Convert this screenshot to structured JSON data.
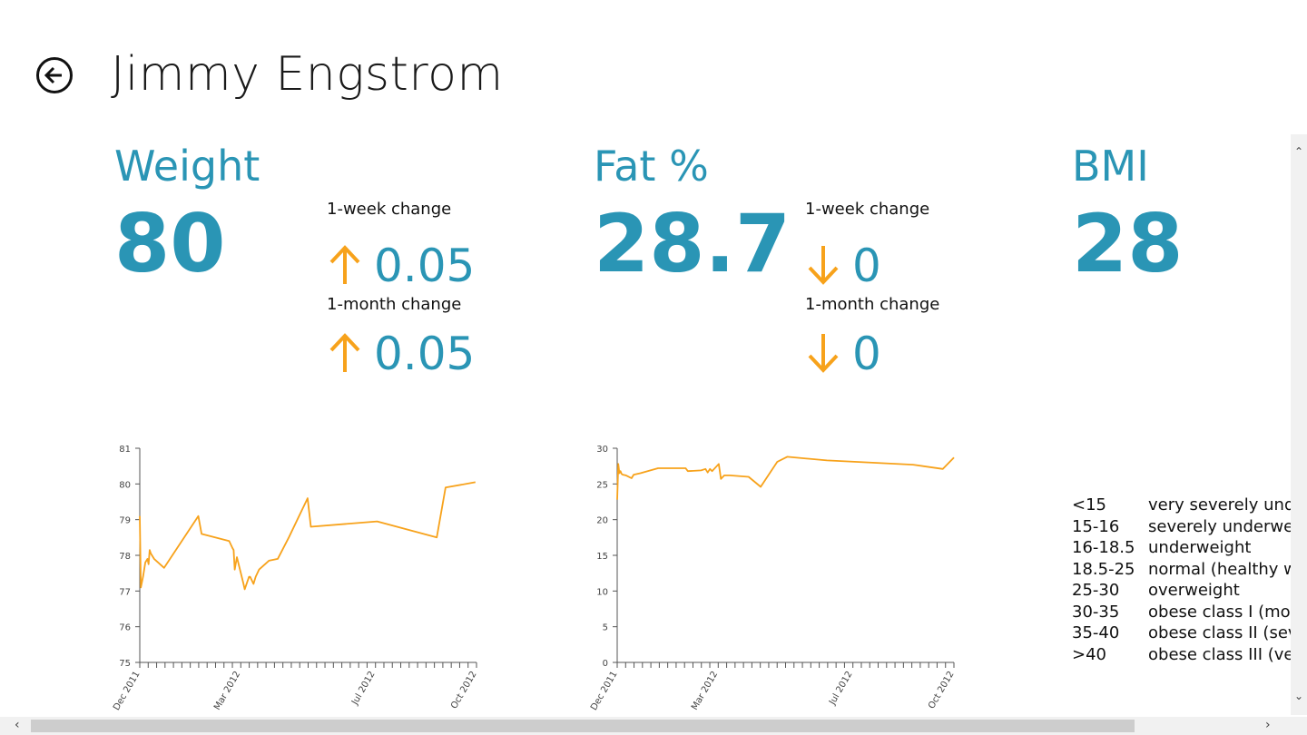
{
  "header": {
    "title": "Jimmy Engstrom"
  },
  "metrics": {
    "weight": {
      "title": "Weight",
      "value": "80",
      "week_label": "1-week change",
      "week_value": "0.05",
      "week_direction": "up",
      "month_label": "1-month change",
      "month_value": "0.05",
      "month_direction": "up"
    },
    "fat": {
      "title": "Fat %",
      "value": "28.7",
      "week_label": "1-week change",
      "week_value": "0",
      "week_direction": "down",
      "month_label": "1-month change",
      "month_value": "0",
      "month_direction": "down"
    },
    "bmi": {
      "title": "BMI",
      "value": "28"
    }
  },
  "colors": {
    "accent": "#2a95b5",
    "arrow": "#f7a21b",
    "line": "#f7a21b"
  },
  "bmi_scale": [
    {
      "range": "<15",
      "desc": "very  severely underweight"
    },
    {
      "range": "15-16",
      "desc": "severely underweight"
    },
    {
      "range": "16-18.5",
      "desc": "underweight"
    },
    {
      "range": "18.5-25",
      "desc": "normal (healthy weight)"
    },
    {
      "range": "25-30",
      "desc": "overweight"
    },
    {
      "range": "30-35",
      "desc": "obese class I (moderately obese)"
    },
    {
      "range": "35-40",
      "desc": "obese class II (severely obese)"
    },
    {
      "range": ">40",
      "desc": "obese class III (very severely obese)"
    }
  ],
  "chart_data": [
    {
      "type": "line",
      "title": "",
      "xlabel": "",
      "ylabel": "",
      "ylim": [
        75,
        81
      ],
      "yticks": [
        75,
        76,
        77,
        78,
        79,
        80,
        81
      ],
      "xlim": [
        "2011-12-01",
        "2012-10-01"
      ],
      "xtick_labels": [
        {
          "label": "Dec 2011",
          "date": "2011-12-01"
        },
        {
          "label": "Mar 2012",
          "date": "2012-03-01"
        },
        {
          "label": "Jul 2012",
          "date": "2012-07-01"
        },
        {
          "label": "Oct 2012",
          "date": "2012-10-01"
        }
      ],
      "grid": false,
      "series": [
        {
          "x": [
            "2011-12-01",
            "2011-12-02",
            "2011-12-04",
            "2011-12-06",
            "2011-12-07",
            "2011-12-08",
            "2011-12-09",
            "2011-12-10",
            "2011-12-11",
            "2011-12-14",
            "2011-12-23",
            "2012-01-23",
            "2012-01-26",
            "2012-02-20",
            "2012-02-23",
            "2012-02-24",
            "2012-02-25",
            "2012-02-27",
            "2012-03-04",
            "2012-03-05",
            "2012-03-09",
            "2012-03-10",
            "2012-03-13",
            "2012-03-15",
            "2012-03-18",
            "2012-03-27",
            "2012-04-04",
            "2012-04-14",
            "2012-05-01",
            "2012-05-04",
            "2012-07-03",
            "2012-08-26",
            "2012-09-03",
            "2012-09-30"
          ],
          "y": [
            79.1,
            77.1,
            77.4,
            77.8,
            77.85,
            77.9,
            77.75,
            78.15,
            78.05,
            77.9,
            77.65,
            79.1,
            78.6,
            78.4,
            78.2,
            78.15,
            77.6,
            77.95,
            77.2,
            77.05,
            77.4,
            77.4,
            77.2,
            77.4,
            77.6,
            77.85,
            77.9,
            78.5,
            79.6,
            78.8,
            78.95,
            78.5,
            79.9,
            80.05
          ]
        }
      ]
    },
    {
      "type": "line",
      "title": "",
      "xlabel": "",
      "ylabel": "",
      "ylim": [
        0,
        30
      ],
      "yticks": [
        0,
        5,
        10,
        15,
        20,
        25,
        30
      ],
      "xlim": [
        "2011-12-01",
        "2012-10-01"
      ],
      "xtick_labels": [
        {
          "label": "Dec 2011",
          "date": "2011-12-01"
        },
        {
          "label": "Mar 2012",
          "date": "2012-03-01"
        },
        {
          "label": "Jul 2012",
          "date": "2012-07-01"
        },
        {
          "label": "Oct 2012",
          "date": "2012-10-01"
        }
      ],
      "grid": false,
      "series": [
        {
          "x": [
            "2011-12-01",
            "2011-12-02",
            "2011-12-03",
            "2011-12-04",
            "2011-12-05",
            "2011-12-06",
            "2011-12-09",
            "2011-12-14",
            "2011-12-16",
            "2011-12-22",
            "2012-01-07",
            "2012-02-01",
            "2012-02-03",
            "2012-02-15",
            "2012-02-19",
            "2012-02-21",
            "2012-02-23",
            "2012-02-25",
            "2012-03-02",
            "2012-03-04",
            "2012-03-07",
            "2012-03-12",
            "2012-03-29",
            "2012-04-09",
            "2012-04-24",
            "2012-05-03",
            "2012-06-08",
            "2012-08-25",
            "2012-09-21",
            "2012-10-01"
          ],
          "y": [
            22.8,
            27.8,
            26.5,
            26.8,
            26.4,
            26.3,
            26.2,
            25.8,
            26.3,
            26.5,
            27.2,
            27.2,
            26.8,
            26.9,
            27.1,
            26.6,
            27.1,
            26.8,
            27.8,
            25.7,
            26.2,
            26.2,
            26.0,
            24.6,
            28.1,
            28.8,
            28.3,
            27.7,
            27.1,
            28.7
          ]
        }
      ]
    }
  ]
}
